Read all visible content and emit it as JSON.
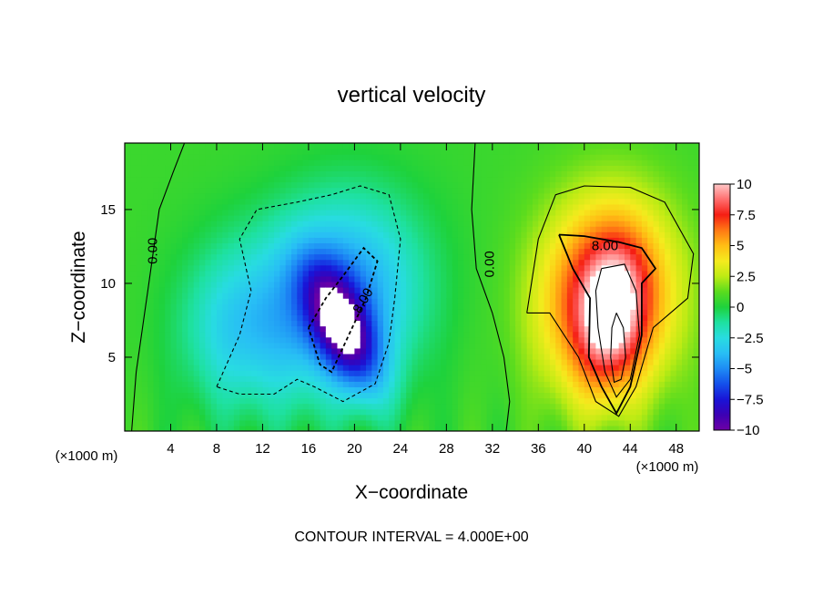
{
  "chart_data": {
    "type": "heatmap",
    "title": "vertical velocity",
    "xlabel": "X−coordinate",
    "ylabel": "Z−coordinate",
    "x_unit_left": "(×1000 m)",
    "x_unit_right": "(×1000 m)",
    "footer": "CONTOUR INTERVAL = 4.000E+00",
    "xlim": [
      0,
      50
    ],
    "ylim": [
      0,
      19.5
    ],
    "x_ticks": [
      4,
      8,
      12,
      16,
      20,
      24,
      28,
      32,
      36,
      40,
      44,
      48
    ],
    "y_ticks": [
      5,
      10,
      15
    ],
    "colorbar": {
      "range": [
        -10,
        10
      ],
      "ticks": [
        10,
        7.5,
        5,
        2.5,
        0,
        -2.5,
        -5,
        -7.5,
        -10
      ],
      "tick_labels": [
        "10",
        "7.5",
        "5",
        "2.5",
        "0",
        "−2.5",
        "−5",
        "−7.5",
        "−10"
      ]
    },
    "contour_labels": [
      {
        "text": "0.00",
        "x": 2.5,
        "z": 12.2,
        "rotate": -90
      },
      {
        "text": "8.00",
        "x": 20.8,
        "z": 8.8,
        "rotate": -60
      },
      {
        "text": "0.00",
        "x": 31.8,
        "z": 11.3,
        "rotate": -90
      },
      {
        "text": "8.00",
        "x": 41.8,
        "z": 12.5,
        "rotate": 0
      }
    ],
    "features": [
      {
        "name": "downdraft",
        "cx": 18.5,
        "cz": 9.0,
        "sx": 5.0,
        "sz": 4.5,
        "amp": -6.0,
        "rot": -0.5
      },
      {
        "name": "downdraft-core",
        "cx": 19.0,
        "cz": 7.0,
        "sx": 1.6,
        "sz": 3.3,
        "amp": -7.5,
        "rot": -0.6
      },
      {
        "name": "downdraft-fringe",
        "cx": 9.5,
        "cz": 7.0,
        "sx": 3.5,
        "sz": 4.0,
        "amp": -3.0,
        "rot": 0
      },
      {
        "name": "updraft",
        "cx": 42.0,
        "cz": 9.0,
        "sx": 4.0,
        "sz": 4.6,
        "amp": 8.5,
        "rot": 0.15
      },
      {
        "name": "updraft-core",
        "cx": 42.3,
        "cz": 7.8,
        "sx": 1.8,
        "sz": 3.2,
        "amp": 4.0,
        "rot": 0.15
      }
    ]
  }
}
